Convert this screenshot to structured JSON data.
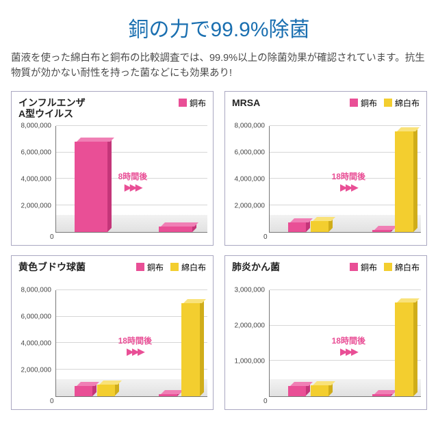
{
  "colors": {
    "title": "#1a6fb0",
    "subtitle": "#4a4a4a",
    "chart_title": "#222222",
    "border": "#a9a7c1",
    "grid": "#d6d6d6",
    "floor_top": "#f2f2f2",
    "floor_bottom": "#e1e1e1",
    "pink": "#e94f96",
    "pink_dark": "#c43579",
    "pink_top": "#f07fb5",
    "yellow": "#f3ce2f",
    "yellow_dark": "#d0ad1a",
    "yellow_top": "#f9e27a",
    "callout": "#e94f96"
  },
  "title": "銅の力で99.9%除菌",
  "subtitle": "菌液を使った綿白布と銅布の比較調査では、99.9%以上の除菌効果が確認されています。抗生物質が効かない耐性を持った菌などにも効果あり!",
  "legend_labels": {
    "pink": "銅布",
    "yellow": "綿白布"
  },
  "charts": [
    {
      "title": "インフルエンザ\nA型ウイルス",
      "y_max": 8000000,
      "y_step": 2000000,
      "series": [
        "pink"
      ],
      "groups": [
        {
          "values": {
            "pink": 6800000
          }
        },
        {
          "values": {
            "pink": 400000
          }
        }
      ],
      "callout": "8時間後",
      "floor_h": 0.16
    },
    {
      "title": "MRSA",
      "y_max": 8000000,
      "y_step": 2000000,
      "series": [
        "pink",
        "yellow"
      ],
      "groups": [
        {
          "values": {
            "pink": 700000,
            "yellow": 800000
          }
        },
        {
          "values": {
            "pink": 150000,
            "yellow": 7600000
          }
        }
      ],
      "callout": "18時間後",
      "floor_h": 0.16
    },
    {
      "title": "黄色ブドウ球菌",
      "y_max": 8000000,
      "y_step": 2000000,
      "series": [
        "pink",
        "yellow"
      ],
      "groups": [
        {
          "values": {
            "pink": 750000,
            "yellow": 850000
          }
        },
        {
          "values": {
            "pink": 150000,
            "yellow": 7000000
          }
        }
      ],
      "callout": "18時間後",
      "floor_h": 0.16
    },
    {
      "title": "肺炎かん菌",
      "y_max": 3000000,
      "y_step": 1000000,
      "series": [
        "pink",
        "yellow"
      ],
      "groups": [
        {
          "values": {
            "pink": 280000,
            "yellow": 300000
          }
        },
        {
          "values": {
            "pink": 60000,
            "yellow": 2650000
          }
        }
      ],
      "callout": "18時間後",
      "floor_h": 0.16
    }
  ]
}
